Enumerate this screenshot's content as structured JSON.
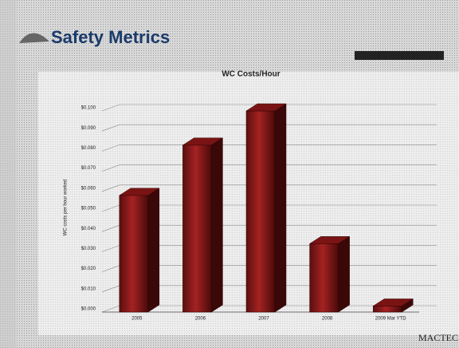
{
  "header": {
    "title": "Safety Metrics",
    "logo": "MACTEC"
  },
  "chart_data": {
    "type": "bar3d",
    "title": "WC Costs/Hour",
    "y_label": "WC costs per hour worked",
    "categories": [
      "2005",
      "2006",
      "2007",
      "2008",
      "2009 Mar YTD"
    ],
    "values": [
      0.058,
      0.083,
      0.1,
      0.034,
      0.003
    ],
    "color": "#8b1a1a",
    "ylim": [
      0,
      0.1
    ],
    "yticks": [
      {
        "value": 0,
        "label": "$0.000"
      },
      {
        "value": 0.01,
        "label": "$0.010"
      },
      {
        "value": 0.02,
        "label": "$0.020"
      },
      {
        "value": 0.03,
        "label": "$0.030"
      },
      {
        "value": 0.04,
        "label": "$0.040"
      },
      {
        "value": 0.05,
        "label": "$0.050"
      },
      {
        "value": 0.06,
        "label": "$0.060"
      },
      {
        "value": 0.07,
        "label": "$0.070"
      },
      {
        "value": 0.08,
        "label": "$0.080"
      },
      {
        "value": 0.09,
        "label": "$0.090"
      },
      {
        "value": 0.1,
        "label": "$0.100"
      }
    ],
    "grid": true
  }
}
